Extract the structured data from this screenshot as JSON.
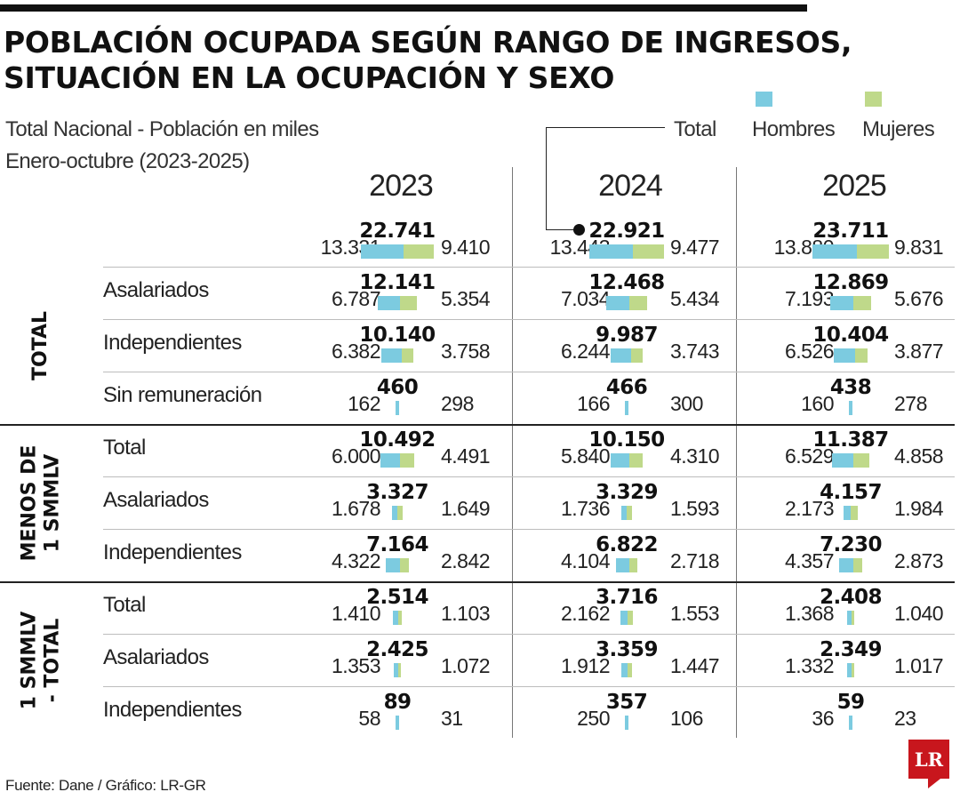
{
  "title_line1": "POBLACIÓN OCUPADA SEGÚN RANGO DE INGRESOS,",
  "title_line2": "SITUACIÓN EN LA OCUPACIÓN Y SEXO",
  "subtitle_line1": "Total Nacional - Población en miles",
  "subtitle_line2": "Enero-octubre (2023-2025)",
  "legend": {
    "total": "Total",
    "hombres": "Hombres",
    "mujeres": "Mujeres"
  },
  "colors": {
    "hombres": "#7ccbe0",
    "mujeres": "#bfd98a"
  },
  "source": "Fuente: Dane / Gráfico: LR-GR",
  "logo": "LR",
  "chart_data": {
    "type": "table",
    "years": [
      "2023",
      "2024",
      "2025"
    ],
    "groups": [
      {
        "label": "TOTAL",
        "rows": [
          {
            "label": "",
            "values": [
              {
                "total": "22.741",
                "hombres": "13.331",
                "mujeres": "9.410"
              },
              {
                "total": "22.921",
                "hombres": "13.443",
                "mujeres": "9.477"
              },
              {
                "total": "23.711",
                "hombres": "13.880",
                "mujeres": "9.831"
              }
            ]
          },
          {
            "label": "Asalariados",
            "values": [
              {
                "total": "12.141",
                "hombres": "6.787",
                "mujeres": "5.354"
              },
              {
                "total": "12.468",
                "hombres": "7.034",
                "mujeres": "5.434"
              },
              {
                "total": "12.869",
                "hombres": "7.193",
                "mujeres": "5.676"
              }
            ]
          },
          {
            "label": "Independientes",
            "values": [
              {
                "total": "10.140",
                "hombres": "6.382",
                "mujeres": "3.758"
              },
              {
                "total": "9.987",
                "hombres": "6.244",
                "mujeres": "3.743"
              },
              {
                "total": "10.404",
                "hombres": "6.526",
                "mujeres": "3.877"
              }
            ]
          },
          {
            "label": "Sin remuneración",
            "values": [
              {
                "total": "460",
                "hombres": "162",
                "mujeres": "298"
              },
              {
                "total": "466",
                "hombres": "166",
                "mujeres": "300"
              },
              {
                "total": "438",
                "hombres": "160",
                "mujeres": "278"
              }
            ]
          }
        ]
      },
      {
        "label": "MENOS DE\n1 SMMLV",
        "rows": [
          {
            "label": "Total",
            "values": [
              {
                "total": "10.492",
                "hombres": "6.000",
                "mujeres": "4.491"
              },
              {
                "total": "10.150",
                "hombres": "5.840",
                "mujeres": "4.310"
              },
              {
                "total": "11.387",
                "hombres": "6.529",
                "mujeres": "4.858"
              }
            ]
          },
          {
            "label": "Asalariados",
            "values": [
              {
                "total": "3.327",
                "hombres": "1.678",
                "mujeres": "1.649"
              },
              {
                "total": "3.329",
                "hombres": "1.736",
                "mujeres": "1.593"
              },
              {
                "total": "4.157",
                "hombres": "2.173",
                "mujeres": "1.984"
              }
            ]
          },
          {
            "label": "Independientes",
            "values": [
              {
                "total": "7.164",
                "hombres": "4.322",
                "mujeres": "2.842"
              },
              {
                "total": "6.822",
                "hombres": "4.104",
                "mujeres": "2.718"
              },
              {
                "total": "7.230",
                "hombres": "4.357",
                "mujeres": "2.873"
              }
            ]
          }
        ]
      },
      {
        "label": "1 SMMLV\n- TOTAL",
        "rows": [
          {
            "label": "Total",
            "values": [
              {
                "total": "2.514",
                "hombres": "1.410",
                "mujeres": "1.103"
              },
              {
                "total": "3.716",
                "hombres": "2.162",
                "mujeres": "1.553"
              },
              {
                "total": "2.408",
                "hombres": "1.368",
                "mujeres": "1.040"
              }
            ]
          },
          {
            "label": "Asalariados",
            "values": [
              {
                "total": "2.425",
                "hombres": "1.353",
                "mujeres": "1.072"
              },
              {
                "total": "3.359",
                "hombres": "1.912",
                "mujeres": "1.447"
              },
              {
                "total": "2.349",
                "hombres": "1.332",
                "mujeres": "1.017"
              }
            ]
          },
          {
            "label": "Independientes",
            "values": [
              {
                "total": "89",
                "hombres": "58",
                "mujeres": "31"
              },
              {
                "total": "357",
                "hombres": "250",
                "mujeres": "106"
              },
              {
                "total": "59",
                "hombres": "36",
                "mujeres": "23"
              }
            ]
          }
        ]
      }
    ]
  }
}
